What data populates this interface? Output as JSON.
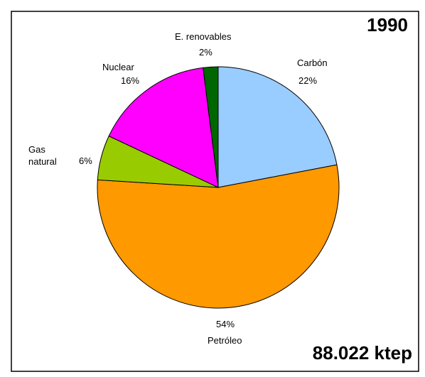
{
  "chart_data": {
    "type": "pie",
    "title": "1990",
    "subtitle": "88.022 ktep",
    "categories": [
      "Carbón",
      "Petróleo",
      "Gas natural",
      "Nuclear",
      "E. renovables"
    ],
    "values": [
      22,
      54,
      6,
      16,
      2
    ],
    "value_labels": [
      "22%",
      "54%",
      "6%",
      "16%",
      "2%"
    ],
    "colors": [
      "#99ccff",
      "#ff9900",
      "#99cc00",
      "#ff00ff",
      "#006600"
    ]
  }
}
